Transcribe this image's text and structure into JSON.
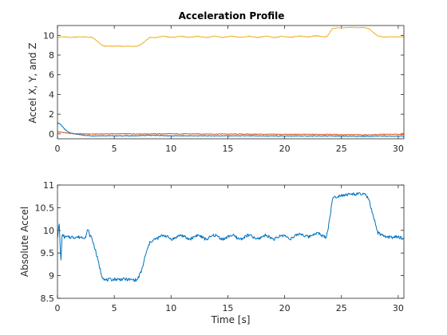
{
  "chart_data": [
    {
      "type": "line",
      "title": "Acceleration Profile",
      "xlabel": "",
      "ylabel": "Accel X, Y, and Z",
      "xlim": [
        0,
        30.5
      ],
      "ylim": [
        -0.5,
        11
      ],
      "xticks": [
        0,
        5,
        10,
        15,
        20,
        25,
        30
      ],
      "yticks": [
        0,
        2,
        4,
        6,
        8,
        10
      ],
      "grid": false,
      "series": [
        {
          "color": "#0072BD",
          "x": [
            0,
            0.2,
            0.4,
            0.6,
            0.8,
            1.0,
            1.5,
            2.0,
            3.0,
            4.0,
            5.0,
            7.0,
            8.0,
            10.0,
            15.0,
            20.0,
            24.0,
            25.0,
            27.5,
            28.5,
            30.5
          ],
          "values": [
            1.1,
            1.05,
            0.8,
            0.5,
            0.3,
            0.15,
            0.0,
            -0.1,
            -0.2,
            -0.18,
            -0.2,
            -0.2,
            -0.15,
            -0.2,
            -0.2,
            -0.22,
            -0.22,
            -0.25,
            -0.25,
            -0.22,
            -0.25
          ]
        },
        {
          "color": "#D95319",
          "x": [
            0,
            0.5,
            1.0,
            2.0,
            3.0,
            5.0,
            7.0,
            8.0,
            10.0,
            15.0,
            20.0,
            24.0,
            25.0,
            27.5,
            28.5,
            30.5
          ],
          "values": [
            0.2,
            0.15,
            0.05,
            0.0,
            -0.02,
            0.0,
            0.0,
            0.0,
            0.0,
            -0.02,
            -0.05,
            -0.05,
            -0.08,
            -0.1,
            -0.05,
            -0.05
          ]
        },
        {
          "color": "#EDB120",
          "x": [
            0,
            0.5,
            1.0,
            2.0,
            3.0,
            3.3,
            3.6,
            3.9,
            4.2,
            5.0,
            6.0,
            7.0,
            7.4,
            7.8,
            8.2,
            9.0,
            10.0,
            12.0,
            14.0,
            16.0,
            18.0,
            20.0,
            22.0,
            23.7,
            24.0,
            24.2,
            24.6,
            25.0,
            26.0,
            27.0,
            27.4,
            27.8,
            28.2,
            28.6,
            29.0,
            30.0,
            30.5
          ],
          "values": [
            9.8,
            9.85,
            9.8,
            9.85,
            9.8,
            9.6,
            9.3,
            9.0,
            8.9,
            8.9,
            8.9,
            8.9,
            9.1,
            9.5,
            9.8,
            9.85,
            9.85,
            9.85,
            9.85,
            9.85,
            9.85,
            9.85,
            9.9,
            9.9,
            10.3,
            10.7,
            10.75,
            10.78,
            10.8,
            10.8,
            10.7,
            10.3,
            9.95,
            9.85,
            9.85,
            9.85,
            9.85
          ]
        }
      ]
    },
    {
      "type": "line",
      "title": "",
      "xlabel": "Time [s]",
      "ylabel": "Absolute Accel",
      "xlim": [
        0,
        30.5
      ],
      "ylim": [
        8.5,
        11
      ],
      "xticks": [
        0,
        5,
        10,
        15,
        20,
        25,
        30
      ],
      "yticks": [
        8.5,
        9,
        9.5,
        10,
        10.5,
        11
      ],
      "grid": false,
      "series": [
        {
          "color": "#0072BD",
          "x": [
            0,
            0.15,
            0.3,
            0.4,
            0.5,
            0.6,
            0.8,
            1.0,
            1.5,
            2.0,
            2.5,
            2.7,
            2.8,
            3.0,
            3.3,
            3.6,
            3.9,
            4.2,
            5.0,
            6.0,
            7.0,
            7.4,
            7.8,
            8.2,
            8.6,
            9.0,
            10.0,
            12.0,
            14.0,
            16.0,
            18.0,
            20.0,
            22.0,
            23.7,
            24.0,
            24.2,
            24.6,
            25.0,
            26.0,
            27.0,
            27.4,
            27.8,
            28.2,
            28.6,
            29.0,
            30.0,
            30.5
          ],
          "values": [
            9.85,
            10.15,
            9.3,
            9.85,
            9.9,
            9.85,
            9.85,
            9.85,
            9.85,
            9.85,
            9.85,
            10.05,
            9.9,
            9.85,
            9.6,
            9.3,
            9.0,
            8.9,
            8.92,
            8.92,
            8.9,
            9.1,
            9.5,
            9.75,
            9.85,
            9.85,
            9.85,
            9.85,
            9.85,
            9.85,
            9.85,
            9.85,
            9.9,
            9.9,
            10.3,
            10.7,
            10.75,
            10.78,
            10.8,
            10.8,
            10.7,
            10.3,
            9.95,
            9.88,
            9.85,
            9.85,
            9.82
          ]
        }
      ]
    }
  ]
}
